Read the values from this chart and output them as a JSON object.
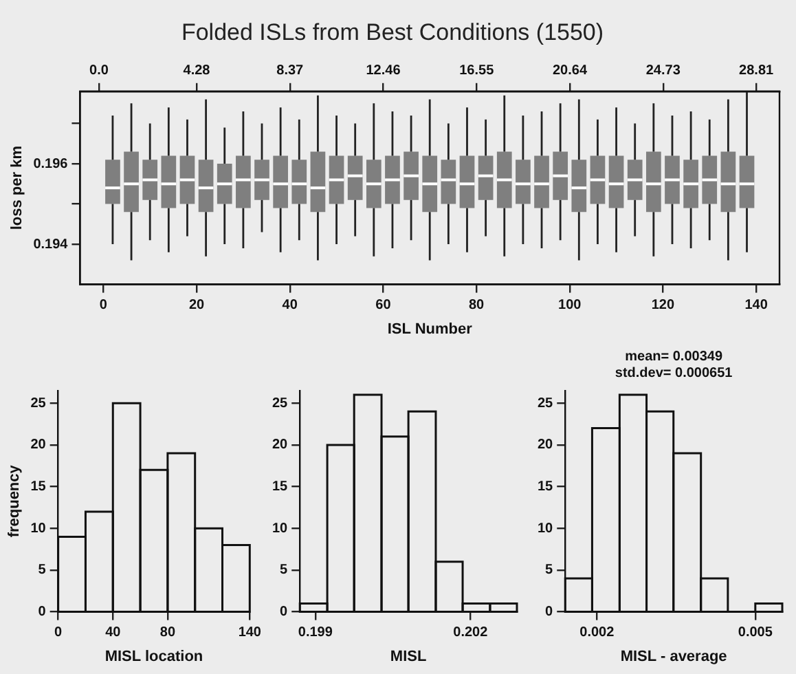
{
  "chart_data": [
    {
      "type": "box",
      "title": "Folded ISLs from Best Conditions (1550)",
      "xlabel": "ISL Number",
      "ylabel": "loss per km",
      "color": "#7f7f7f",
      "x": [
        2,
        6,
        10,
        14,
        18,
        22,
        26,
        30,
        34,
        38,
        42,
        46,
        50,
        54,
        58,
        62,
        66,
        70,
        74,
        78,
        82,
        86,
        90,
        94,
        98,
        102,
        106,
        110,
        114,
        118,
        122,
        126,
        130,
        134,
        138
      ],
      "boxes": [
        {
          "low": 0.194,
          "q1": 0.195,
          "median": 0.1954,
          "q3": 0.1961,
          "high": 0.1972
        },
        {
          "low": 0.1936,
          "q1": 0.1948,
          "median": 0.1955,
          "q3": 0.1963,
          "high": 0.1975
        },
        {
          "low": 0.1941,
          "q1": 0.1951,
          "median": 0.1956,
          "q3": 0.1961,
          "high": 0.197
        },
        {
          "low": 0.1938,
          "q1": 0.1949,
          "median": 0.1955,
          "q3": 0.1962,
          "high": 0.1974
        },
        {
          "low": 0.1942,
          "q1": 0.195,
          "median": 0.1956,
          "q3": 0.1962,
          "high": 0.1971
        },
        {
          "low": 0.1937,
          "q1": 0.1948,
          "median": 0.1954,
          "q3": 0.1961,
          "high": 0.1976
        },
        {
          "low": 0.194,
          "q1": 0.195,
          "median": 0.1955,
          "q3": 0.196,
          "high": 0.1969
        },
        {
          "low": 0.1939,
          "q1": 0.1949,
          "median": 0.1956,
          "q3": 0.1962,
          "high": 0.1973
        },
        {
          "low": 0.1943,
          "q1": 0.1951,
          "median": 0.1956,
          "q3": 0.1961,
          "high": 0.197
        },
        {
          "low": 0.1938,
          "q1": 0.1949,
          "median": 0.1955,
          "q3": 0.1962,
          "high": 0.1974
        },
        {
          "low": 0.1941,
          "q1": 0.195,
          "median": 0.1955,
          "q3": 0.1961,
          "high": 0.1971
        },
        {
          "low": 0.1936,
          "q1": 0.1948,
          "median": 0.1954,
          "q3": 0.1963,
          "high": 0.1977
        },
        {
          "low": 0.194,
          "q1": 0.195,
          "median": 0.1956,
          "q3": 0.1962,
          "high": 0.1972
        },
        {
          "low": 0.1942,
          "q1": 0.1951,
          "median": 0.1957,
          "q3": 0.1962,
          "high": 0.197
        },
        {
          "low": 0.1937,
          "q1": 0.1949,
          "median": 0.1955,
          "q3": 0.1961,
          "high": 0.1975
        },
        {
          "low": 0.1939,
          "q1": 0.195,
          "median": 0.1956,
          "q3": 0.1962,
          "high": 0.1973
        },
        {
          "low": 0.1941,
          "q1": 0.1951,
          "median": 0.1957,
          "q3": 0.1963,
          "high": 0.1972
        },
        {
          "low": 0.1936,
          "q1": 0.1948,
          "median": 0.1955,
          "q3": 0.1962,
          "high": 0.1976
        },
        {
          "low": 0.194,
          "q1": 0.195,
          "median": 0.1956,
          "q3": 0.1961,
          "high": 0.197
        },
        {
          "low": 0.1938,
          "q1": 0.1949,
          "median": 0.1955,
          "q3": 0.1962,
          "high": 0.1974
        },
        {
          "low": 0.1942,
          "q1": 0.1951,
          "median": 0.1957,
          "q3": 0.1962,
          "high": 0.1971
        },
        {
          "low": 0.1937,
          "q1": 0.1949,
          "median": 0.1956,
          "q3": 0.1963,
          "high": 0.1977
        },
        {
          "low": 0.194,
          "q1": 0.195,
          "median": 0.1955,
          "q3": 0.1961,
          "high": 0.1972
        },
        {
          "low": 0.1939,
          "q1": 0.1949,
          "median": 0.1955,
          "q3": 0.1962,
          "high": 0.1973
        },
        {
          "low": 0.1941,
          "q1": 0.1951,
          "median": 0.1957,
          "q3": 0.1963,
          "high": 0.1975
        },
        {
          "low": 0.1936,
          "q1": 0.1948,
          "median": 0.1954,
          "q3": 0.1961,
          "high": 0.1976
        },
        {
          "low": 0.194,
          "q1": 0.195,
          "median": 0.1956,
          "q3": 0.1962,
          "high": 0.1971
        },
        {
          "low": 0.1938,
          "q1": 0.1949,
          "median": 0.1955,
          "q3": 0.1962,
          "high": 0.1974
        },
        {
          "low": 0.1942,
          "q1": 0.1951,
          "median": 0.1956,
          "q3": 0.1961,
          "high": 0.197
        },
        {
          "low": 0.1937,
          "q1": 0.1948,
          "median": 0.1955,
          "q3": 0.1963,
          "high": 0.1975
        },
        {
          "low": 0.194,
          "q1": 0.195,
          "median": 0.1956,
          "q3": 0.1962,
          "high": 0.1972
        },
        {
          "low": 0.1939,
          "q1": 0.1949,
          "median": 0.1955,
          "q3": 0.1961,
          "high": 0.1973
        },
        {
          "low": 0.1941,
          "q1": 0.195,
          "median": 0.1956,
          "q3": 0.1962,
          "high": 0.1971
        },
        {
          "low": 0.1936,
          "q1": 0.1948,
          "median": 0.1955,
          "q3": 0.1963,
          "high": 0.1976
        },
        {
          "low": 0.1938,
          "q1": 0.1949,
          "median": 0.1955,
          "q3": 0.1962,
          "high": 0.1978
        }
      ],
      "xlim": [
        -5,
        145
      ],
      "xticks": [
        0,
        20,
        40,
        60,
        80,
        100,
        120,
        140
      ],
      "x2lim": [
        -0.83,
        29.83
      ],
      "x2ticks": [
        {
          "value": 0,
          "label": "0.0"
        },
        4.28,
        8.37,
        12.46,
        16.55,
        20.64,
        24.73,
        28.81
      ],
      "ylim": [
        0.193,
        0.1978
      ],
      "yticks": [
        {
          "value": 0.194,
          "label": "0.194"
        },
        {
          "value": 0.195,
          "label": null
        },
        {
          "value": 0.196,
          "label": "0.196"
        },
        {
          "value": 0.197,
          "label": null
        }
      ]
    },
    {
      "type": "histogram",
      "xlabel": "MISL location",
      "ylabel": "frequency",
      "color": "#111111",
      "bins": [
        0,
        20,
        40,
        60,
        80,
        100,
        120,
        140
      ],
      "values": [
        9,
        12,
        25,
        17,
        19,
        10,
        8
      ],
      "xlim": [
        0,
        140
      ],
      "xticks": [
        0,
        40,
        80,
        140
      ],
      "ylim": [
        0,
        26.5
      ],
      "yticks": [
        0,
        5,
        10,
        15,
        20,
        25
      ]
    },
    {
      "type": "histogram",
      "xlabel": "MISL",
      "color": "#111111",
      "bins": [
        0.1987,
        0.19923,
        0.19975,
        0.20028,
        0.2008,
        0.20133,
        0.20185,
        0.20238,
        0.2029
      ],
      "values": [
        1,
        20,
        26,
        21,
        24,
        6,
        1,
        1
      ],
      "xlim": [
        0.1987,
        0.2029
      ],
      "xticks": [
        0.199,
        0.202
      ],
      "ylim": [
        0,
        26.5
      ],
      "yticks": [
        0,
        5,
        10,
        15,
        20,
        25
      ]
    },
    {
      "type": "histogram",
      "xlabel": "MISL - average",
      "color": "#111111",
      "annotations": [
        "mean= 0.00349",
        "std.dev= 0.000651"
      ],
      "bins": [
        0.0014,
        0.00191,
        0.00243,
        0.00294,
        0.00345,
        0.00397,
        0.00448,
        0.005,
        0.00551
      ],
      "values": [
        4,
        22,
        26,
        24,
        19,
        4,
        0,
        1
      ],
      "xlim": [
        0.0014,
        0.00551
      ],
      "xticks": [
        0.002,
        0.005
      ],
      "ylim": [
        0,
        26.5
      ],
      "yticks": [
        0,
        5,
        10,
        15,
        20,
        25
      ]
    }
  ]
}
